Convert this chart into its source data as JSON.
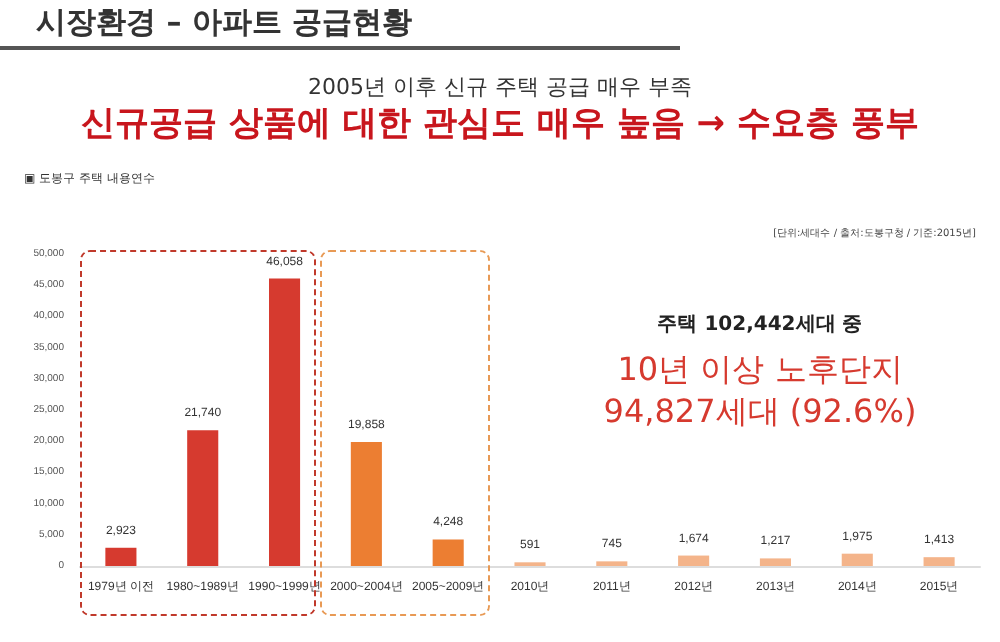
{
  "chart_data": {
    "type": "bar",
    "title": "시장환경 – 아파트 공급현황",
    "subtitle": "2005년 이후 신규 주택 공급 매우 부족",
    "annotations": [
      "신규공급 상품에 대한 관심도 매우 높음 → 수요층 풍부",
      "▣ 도봉구 주택 내용연수",
      "[단위:세대수 / 출처:도봉구청 / 기준:2015년]",
      "주택 102,442세대 중",
      "10년 이상 노후단지",
      "94,827세대 (92.6%)"
    ],
    "categories": [
      "1979년 이전",
      "1980~1989년",
      "1990~1999년",
      "2000~2004년",
      "2005~2009년",
      "2010년",
      "2011년",
      "2012년",
      "2013년",
      "2014년",
      "2015년"
    ],
    "values": [
      2923,
      21740,
      46058,
      19858,
      4248,
      591,
      745,
      1674,
      1217,
      1975,
      1413
    ],
    "value_labels": [
      "2,923",
      "21,740",
      "46,058",
      "19,858",
      "4,248",
      "591",
      "745",
      "1,674",
      "1,217",
      "1,975",
      "1,413"
    ],
    "colors": [
      "#d63a2f",
      "#d63a2f",
      "#d63a2f",
      "#ec7e32",
      "#ec7e32",
      "#f4b48a",
      "#f4b48a",
      "#f4b48a",
      "#f4b48a",
      "#f4b48a",
      "#f4b48a"
    ],
    "ylim": [
      0,
      50000
    ],
    "yticks": [
      0,
      {
        "value": 5000,
        "label": "5,000"
      },
      {
        "value": 10000,
        "label": "10,000"
      },
      {
        "value": 15000,
        "label": "15,000"
      },
      {
        "value": 20000,
        "label": "20,000"
      },
      {
        "value": 25000,
        "label": "25,000"
      },
      {
        "value": 30000,
        "label": "30,000"
      },
      {
        "value": 35000,
        "label": "35,000"
      },
      {
        "value": 40000,
        "label": "40,000"
      },
      {
        "value": 45000,
        "label": "45,000"
      },
      {
        "value": 50000,
        "label": "50,000"
      }
    ],
    "grid": false
  }
}
